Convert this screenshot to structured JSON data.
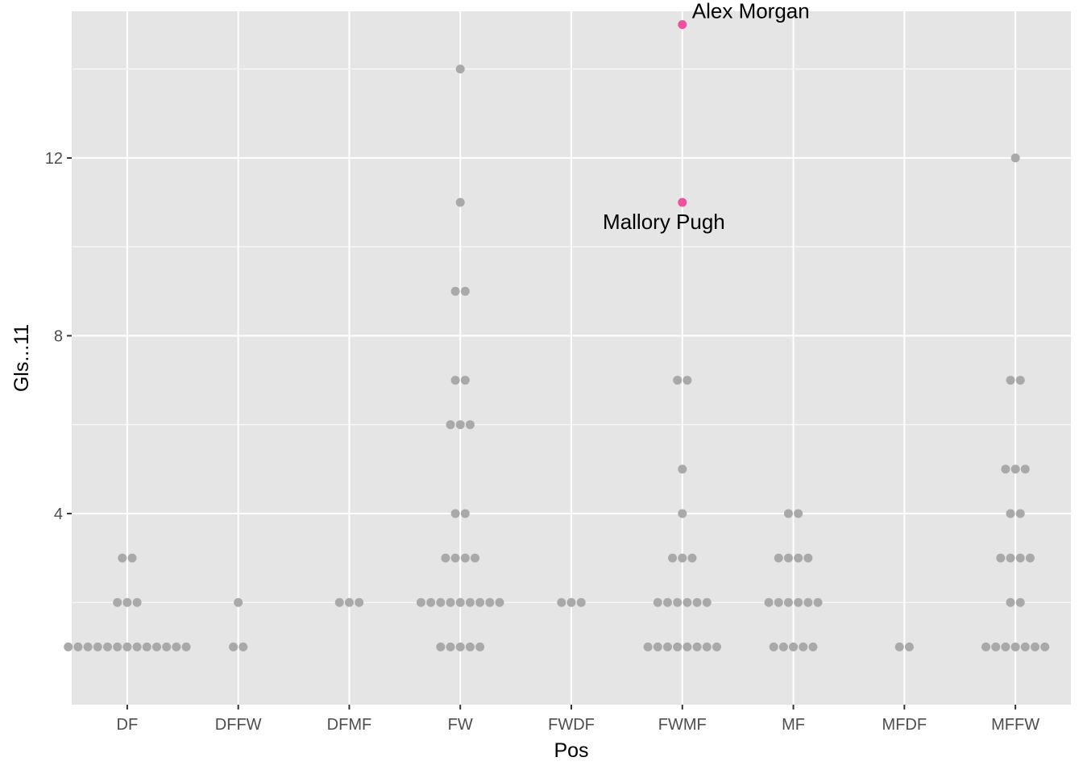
{
  "chart_data": {
    "type": "scatter",
    "subtype": "dotplot",
    "title": "",
    "xlabel": "Pos",
    "ylabel": "Gls...11",
    "categories": [
      "DF",
      "DFFW",
      "DFMF",
      "FW",
      "FWDF",
      "FWMF",
      "MF",
      "MFDF",
      "MFFW"
    ],
    "yticks": [
      4,
      8,
      12
    ],
    "ylim": [
      -0.3,
      15.3
    ],
    "grid": true,
    "legend": "none",
    "colors": {
      "panel": "#e5e5e5",
      "gridline": "#ffffff",
      "point": "#a9a9a9",
      "highlight": "#f050a0"
    },
    "points": [
      {
        "category": "DF",
        "counts": [
          [
            1,
            13
          ],
          [
            2,
            3
          ],
          [
            3,
            2
          ]
        ]
      },
      {
        "category": "DFFW",
        "counts": [
          [
            1,
            2
          ],
          [
            2,
            1
          ]
        ]
      },
      {
        "category": "DFMF",
        "counts": [
          [
            2,
            3
          ]
        ]
      },
      {
        "category": "FW",
        "counts": [
          [
            1,
            5
          ],
          [
            2,
            9
          ],
          [
            3,
            4
          ],
          [
            4,
            2
          ],
          [
            6,
            3
          ],
          [
            7,
            2
          ],
          [
            9,
            2
          ],
          [
            11,
            1
          ],
          [
            14,
            1
          ]
        ]
      },
      {
        "category": "FWDF",
        "counts": [
          [
            2,
            3
          ]
        ]
      },
      {
        "category": "FWMF",
        "counts": [
          [
            1,
            8
          ],
          [
            2,
            6
          ],
          [
            3,
            3
          ],
          [
            4,
            1
          ],
          [
            5,
            1
          ],
          [
            7,
            2
          ]
        ]
      },
      {
        "category": "MF",
        "counts": [
          [
            1,
            5
          ],
          [
            2,
            6
          ],
          [
            3,
            4
          ],
          [
            4,
            2
          ]
        ]
      },
      {
        "category": "MFDF",
        "counts": [
          [
            1,
            2
          ]
        ]
      },
      {
        "category": "MFFW",
        "counts": [
          [
            1,
            7
          ],
          [
            2,
            2
          ],
          [
            3,
            4
          ],
          [
            4,
            2
          ],
          [
            5,
            3
          ],
          [
            7,
            2
          ],
          [
            12,
            1
          ]
        ]
      }
    ],
    "highlighted": [
      {
        "name": "Alex Morgan",
        "category": "FWMF",
        "value": 15,
        "label_side": "above-right"
      },
      {
        "name": "Mallory Pugh",
        "category": "FWMF",
        "value": 11,
        "label_side": "below-left"
      }
    ]
  }
}
